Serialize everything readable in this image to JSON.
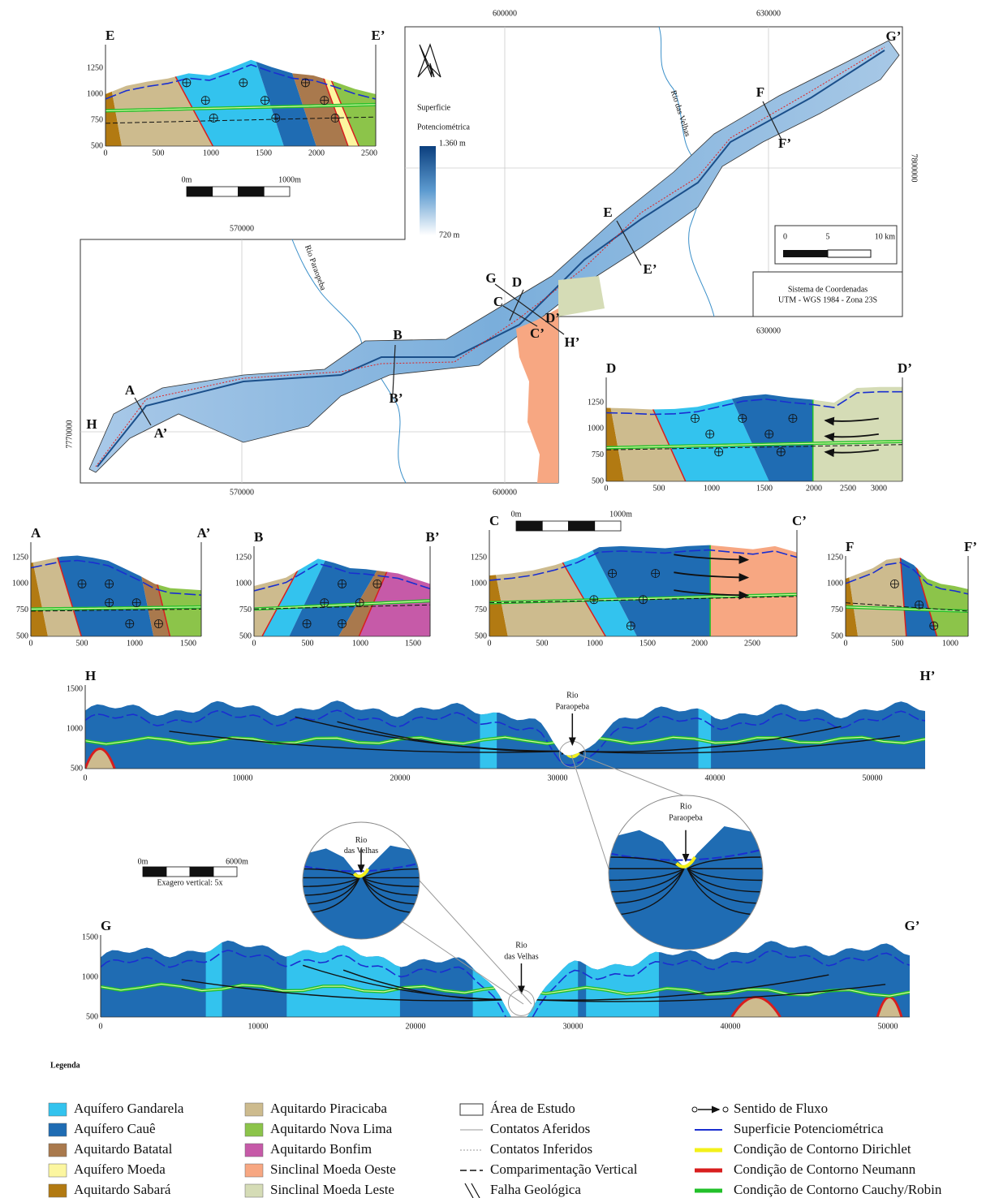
{
  "map": {
    "coords": {
      "top": [
        "600000",
        "630000"
      ],
      "inner_top": "570000",
      "right": "7800000",
      "left": "7770000",
      "bottom": [
        "570000",
        "600000"
      ],
      "bottom_right": "630000"
    },
    "colorbar_title": [
      "Superficie",
      "Potenciométrica"
    ],
    "colorbar_max": "1.360 m",
    "colorbar_min": "720 m",
    "scale": [
      "0",
      "5",
      "10 km"
    ],
    "crs": [
      "Sistema de Coordenadas",
      "UTM - WGS 1984 - Zona 23S"
    ],
    "rivers": [
      "Rio das Velhas",
      "Rio Paraopeba"
    ],
    "section_labels": [
      "A",
      "A’",
      "B",
      "B’",
      "C",
      "C’",
      "D",
      "D’",
      "E",
      "E’",
      "F",
      "F’",
      "G",
      "G’",
      "H",
      "H’"
    ]
  },
  "sections": [
    {
      "start": "E",
      "end": "E’",
      "yticks": [
        "500",
        "750",
        "1000",
        "1250"
      ],
      "xticks": [
        "0",
        "500",
        "1000",
        "1500",
        "2000",
        "2500"
      ]
    },
    {
      "start": "D",
      "end": "D’",
      "yticks": [
        "500",
        "750",
        "1000",
        "1250"
      ],
      "xticks": [
        "0",
        "500",
        "1000",
        "1500",
        "2000",
        "2500",
        "3000"
      ]
    },
    {
      "start": "A",
      "end": "A’",
      "yticks": [
        "500",
        "750",
        "1000",
        "1250"
      ],
      "xticks": [
        "0",
        "500",
        "1000",
        "1500"
      ]
    },
    {
      "start": "B",
      "end": "B’",
      "yticks": [
        "500",
        "750",
        "1000",
        "1250"
      ],
      "xticks": [
        "0",
        "500",
        "1000",
        "1500"
      ]
    },
    {
      "start": "C",
      "end": "C’",
      "yticks": [
        "500",
        "750",
        "1000",
        "1250"
      ],
      "xticks": [
        "0",
        "500",
        "1000",
        "1500",
        "2000",
        "2500"
      ]
    },
    {
      "start": "F",
      "end": "F’",
      "yticks": [
        "500",
        "750",
        "1000",
        "1250"
      ],
      "xticks": [
        "0",
        "500",
        "1000"
      ]
    },
    {
      "start": "H",
      "end": "H’",
      "yticks": [
        "500",
        "1000",
        "1500"
      ],
      "xticks": [
        "0",
        "10000",
        "20000",
        "30000",
        "40000",
        "50000"
      ],
      "river": [
        "Rio",
        "Paraopeba"
      ]
    },
    {
      "start": "G",
      "end": "G’",
      "yticks": [
        "500",
        "1000",
        "1500"
      ],
      "xticks": [
        "0",
        "10000",
        "20000",
        "30000",
        "40000",
        "50000"
      ],
      "river": [
        "Rio",
        "das Velhas"
      ]
    }
  ],
  "scale_bars": [
    {
      "labels": [
        "0m",
        "1000m"
      ]
    },
    {
      "labels": [
        "0m",
        "1000m"
      ]
    },
    {
      "labels": [
        "0m",
        "6000m"
      ],
      "note": "Exagero vertical: 5x"
    }
  ],
  "zooms": [
    {
      "label": [
        "Rio",
        "das Velhas"
      ]
    },
    {
      "label": [
        "Rio",
        "Paraopeba"
      ]
    }
  ],
  "legend": {
    "title": "Legenda",
    "units": [
      {
        "name": "Aquífero Gandarela",
        "color": "#33c3ee"
      },
      {
        "name": "Aquífero Cauê",
        "color": "#1f6cb3"
      },
      {
        "name": "Aquitardo Batatal",
        "color": "#a9794d"
      },
      {
        "name": "Aquífero Moeda",
        "color": "#fcf6a0"
      },
      {
        "name": "Aquitardo Sabará",
        "color": "#b27a12"
      },
      {
        "name": "Aquitardo Piracicaba",
        "color": "#cdbb8e"
      },
      {
        "name": "Aquitardo Nova Lima",
        "color": "#8cc44a"
      },
      {
        "name": "Aquitardo Bonfim",
        "color": "#c65aa8"
      },
      {
        "name": "Sinclinal Moeda Oeste",
        "color": "#f7a782"
      },
      {
        "name": "Sinclinal Moeda Leste",
        "color": "#d5dcb6"
      }
    ],
    "lines": [
      "Área de Estudo",
      "Contatos Aferidos",
      "Contatos Inferidos",
      "Comparimentação Vertical",
      "Falha Geológica"
    ],
    "symbols": [
      "Sentido de Fluxo",
      "Superficie Potenciométrica",
      "Condição de Contorno Dirichlet",
      "Condição de Contorno Neumann",
      "Condição de Contorno Cauchy/Robin"
    ]
  }
}
